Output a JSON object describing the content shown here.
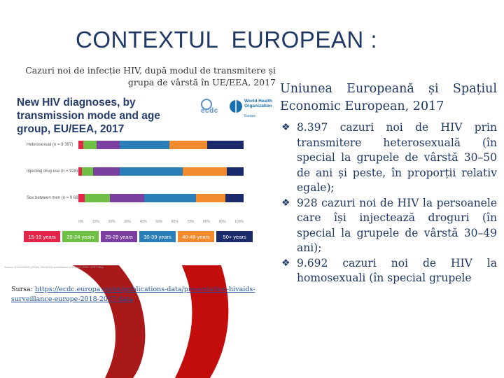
{
  "title": "CONTEXTUL  EUROPEAN :",
  "caption": "Cazuri noi de infecție HIV, după modul de transmitere și grupa de vârstă în UE/EEA, 2017",
  "figure": {
    "heading": "New HIV diagnoses, by transmission mode and age group, EU/EEA, 2017",
    "logo_ecdc": "ecdc",
    "logo_who": "World Health Organization",
    "logo_who_sub": "Europe",
    "footnote": "Source: ECDC/WHO (2018). HIV/AIDS surveillance in Europe 2018 – 2017 data",
    "chart_data": {
      "type": "bar",
      "orientation": "horizontal-stacked-100",
      "categories": [
        "Heterosexual (n = 8 397)",
        "Injecting drug use (n = 928)",
        "Sex between men (n = 9 692)"
      ],
      "series": [
        {
          "name": "15-19 years",
          "color": "#e4254b",
          "values": [
            3,
            2,
            4
          ]
        },
        {
          "name": "20-24 years",
          "color": "#6fbf44",
          "values": [
            8,
            7,
            15
          ]
        },
        {
          "name": "25-29 years",
          "color": "#7b3fa0",
          "values": [
            14,
            16,
            21
          ]
        },
        {
          "name": "30-39 years",
          "color": "#2a7fb8",
          "values": [
            30,
            38,
            31
          ]
        },
        {
          "name": "40-49 years",
          "color": "#f28a2e",
          "values": [
            23,
            27,
            18
          ]
        },
        {
          "name": "50+ years",
          "color": "#1b2a6b",
          "values": [
            22,
            10,
            11
          ]
        }
      ],
      "axis_ticks": [
        "0%",
        "10%",
        "20%",
        "30%",
        "40%",
        "50%",
        "60%",
        "70%",
        "80%",
        "90%",
        "100%"
      ],
      "legend": [
        "15-19 years",
        "20-24 years",
        "25-29 years",
        "30-39 years",
        "40-49 years",
        "50+ years"
      ]
    }
  },
  "source": {
    "label": "Sursa: ",
    "link": "https://ecdc.europa.eu/en/publications-data/presentation-hivaids-surveillance-europe-2018-2017-data"
  },
  "right": {
    "heading_line1": "Uniunea Europeană și Spațiul",
    "heading_line2": "Economic European, 2017",
    "bullets": [
      "8.397 cazuri noi de HIV prin transmitere heterosexuală (în special la grupele de vârstă 30–50 de ani și peste, în proporții relativ egale);",
      "928 cazuri noi de HIV la persoanele care își injectează droguri (în special la grupele de vârstă 30–49 ani);",
      "9.692 cazuri noi de HIV la homosexuali (în special grupele"
    ]
  },
  "colors": {
    "title": "#1f3864",
    "ribbon": "#c00000"
  }
}
